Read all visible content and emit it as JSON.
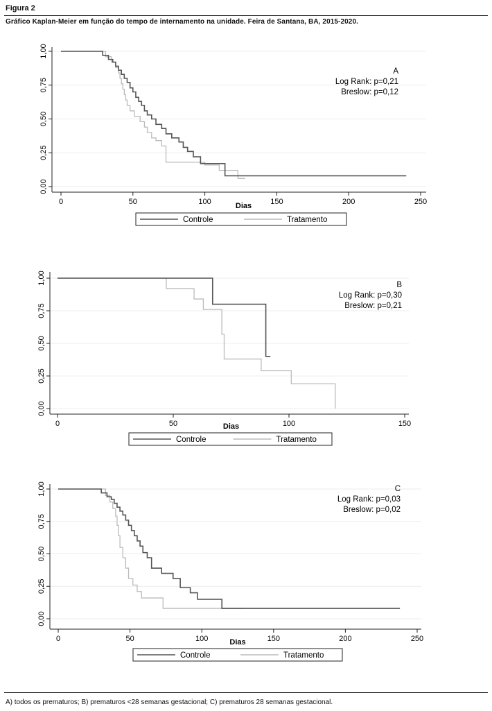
{
  "figure": {
    "label": "Figura 2",
    "caption": "Gráfico Kaplan-Meier em função do tempo de internamento na unidade. Feira de Santana, BA, 2015-2020.",
    "footnote": "A) todos os prematuros; B) prematuros <28 semanas gestacional; C) prematuros  28 semanas gestacional."
  },
  "colors": {
    "controle": "#555555",
    "tratamento": "#bbbbbb",
    "axis": "#222222",
    "grid": "#e6e6e6"
  },
  "chart_data": [
    {
      "type": "line",
      "panel": "A",
      "xlabel": "Dias",
      "ylabel": "",
      "xlim": [
        0,
        250
      ],
      "ylim": [
        0,
        1
      ],
      "xticks": [
        0,
        50,
        100,
        150,
        200,
        250
      ],
      "yticks": [
        "0,00",
        "0,25",
        "0,50",
        "0,75",
        "1,00"
      ],
      "yticks_values": [
        0,
        0.25,
        0.5,
        0.75,
        1
      ],
      "annotations": [
        "A",
        "Log Rank: p=0,21",
        "Breslow: p=0,12"
      ],
      "legend": {
        "position": "bottom",
        "entries": [
          "Controle",
          "Tratamento"
        ]
      },
      "series": [
        {
          "name": "Controle",
          "step": true,
          "x": [
            0,
            29,
            33,
            36,
            38,
            40,
            42,
            44,
            46,
            48,
            50,
            52,
            54,
            56,
            58,
            60,
            63,
            66,
            70,
            73,
            77,
            82,
            85,
            88,
            92,
            97,
            105,
            114,
            120,
            240
          ],
          "y": [
            1,
            0.97,
            0.94,
            0.92,
            0.89,
            0.86,
            0.83,
            0.8,
            0.77,
            0.73,
            0.7,
            0.66,
            0.63,
            0.6,
            0.56,
            0.53,
            0.5,
            0.46,
            0.43,
            0.39,
            0.36,
            0.33,
            0.29,
            0.26,
            0.22,
            0.17,
            0.17,
            0.08,
            0.08,
            0.08
          ]
        },
        {
          "name": "Tratamento",
          "step": true,
          "x": [
            0,
            31,
            35,
            38,
            40,
            41,
            42,
            43,
            44,
            45,
            46,
            48,
            51,
            55,
            58,
            60,
            63,
            66,
            70,
            73,
            85,
            100,
            110,
            115,
            123,
            128
          ],
          "y": [
            1,
            0.96,
            0.92,
            0.88,
            0.84,
            0.8,
            0.76,
            0.72,
            0.68,
            0.64,
            0.6,
            0.56,
            0.52,
            0.48,
            0.44,
            0.4,
            0.36,
            0.34,
            0.3,
            0.18,
            0.18,
            0.16,
            0.12,
            0.12,
            0.06,
            0.06
          ]
        }
      ]
    },
    {
      "type": "line",
      "panel": "B",
      "xlabel": "Dias",
      "ylabel": "",
      "xlim": [
        0,
        150
      ],
      "ylim": [
        0,
        1
      ],
      "xticks": [
        0,
        50,
        100,
        150
      ],
      "yticks": [
        "0,00",
        "0,25",
        "0,50",
        "0,75",
        "1,00"
      ],
      "yticks_values": [
        0,
        0.25,
        0.5,
        0.75,
        1
      ],
      "annotations": [
        "B",
        "Log Rank: p=0,30",
        "Breslow: p=0,21"
      ],
      "legend": {
        "position": "bottom",
        "entries": [
          "Controle",
          "Tratamento"
        ]
      },
      "series": [
        {
          "name": "Controle",
          "step": true,
          "x": [
            0,
            67,
            90,
            92
          ],
          "y": [
            1,
            0.8,
            0.4,
            0.4
          ]
        },
        {
          "name": "Tratamento",
          "step": true,
          "x": [
            0,
            47,
            59,
            63,
            71,
            72,
            88,
            101,
            120
          ],
          "y": [
            1,
            0.92,
            0.84,
            0.76,
            0.57,
            0.38,
            0.29,
            0.19,
            0
          ]
        }
      ]
    },
    {
      "type": "line",
      "panel": "C",
      "xlabel": "Dias",
      "ylabel": "",
      "xlim": [
        0,
        250
      ],
      "ylim": [
        0,
        1
      ],
      "xticks": [
        0,
        50,
        100,
        150,
        200,
        250
      ],
      "yticks": [
        "0,00",
        "0,25",
        "0,50",
        "0,75",
        "1,00"
      ],
      "yticks_values": [
        0,
        0.25,
        0.5,
        0.75,
        1
      ],
      "annotations": [
        "C",
        "Log Rank: p=0,03",
        "Breslow: p=0,02"
      ],
      "legend": {
        "position": "bottom",
        "entries": [
          "Controle",
          "Tratamento"
        ]
      },
      "series": [
        {
          "name": "Controle",
          "step": true,
          "x": [
            0,
            30,
            34,
            37,
            39,
            41,
            43,
            45,
            47,
            49,
            51,
            53,
            55,
            57,
            59,
            62,
            65,
            72,
            80,
            85,
            92,
            97,
            114,
            125,
            238
          ],
          "y": [
            1,
            0.97,
            0.94,
            0.92,
            0.89,
            0.86,
            0.83,
            0.8,
            0.76,
            0.72,
            0.68,
            0.64,
            0.6,
            0.56,
            0.51,
            0.47,
            0.39,
            0.35,
            0.31,
            0.24,
            0.2,
            0.15,
            0.08,
            0.08,
            0.08
          ]
        },
        {
          "name": "Tratamento",
          "step": true,
          "x": [
            0,
            33,
            36,
            38,
            40,
            41,
            42,
            43,
            45,
            47,
            49,
            52,
            55,
            58,
            63,
            73,
            130
          ],
          "y": [
            1,
            0.95,
            0.9,
            0.85,
            0.79,
            0.72,
            0.64,
            0.55,
            0.47,
            0.39,
            0.31,
            0.26,
            0.21,
            0.16,
            0.16,
            0.08,
            0.08
          ]
        }
      ]
    }
  ]
}
